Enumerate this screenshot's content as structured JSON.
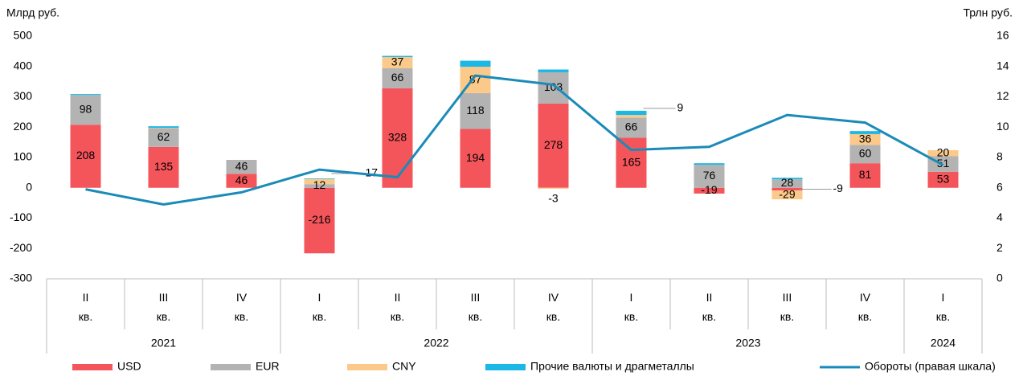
{
  "chart_data": {
    "type": "bar",
    "ylabel": "Млрд руб.",
    "y2label": "Трлн руб.",
    "ylim": [
      -300,
      500
    ],
    "yticks": [
      -300,
      -200,
      -100,
      0,
      100,
      200,
      300,
      400,
      500
    ],
    "y2lim": [
      0,
      16
    ],
    "y2ticks": [
      0,
      2,
      4,
      6,
      8,
      10,
      12,
      14,
      16
    ],
    "year_groups": [
      {
        "label": "2021",
        "quarters": [
          "II кв.",
          "III кв.",
          "IV кв."
        ]
      },
      {
        "label": "2022",
        "quarters": [
          "I кв.",
          "II кв.",
          "III кв.",
          "IV кв."
        ]
      },
      {
        "label": "2023",
        "quarters": [
          "I кв.",
          "II кв.",
          "III кв.",
          "IV кв."
        ]
      },
      {
        "label": "2024",
        "quarters": [
          "I кв."
        ]
      }
    ],
    "series": [
      {
        "name": "USD",
        "color": "#f4555a",
        "values": [
          208,
          135,
          46,
          -216,
          328,
          194,
          278,
          165,
          -19,
          -9,
          81,
          53
        ],
        "value_labels": [
          "208",
          "135",
          "46",
          "-216",
          "328",
          "194",
          "278",
          "165",
          "-19",
          "-9",
          "81",
          "53"
        ]
      },
      {
        "name": "EUR",
        "color": "#b3b3b3",
        "values": [
          98,
          62,
          46,
          12,
          66,
          118,
          103,
          66,
          76,
          28,
          60,
          51
        ],
        "value_labels": [
          "98",
          "62",
          "46",
          "12",
          "66",
          "118",
          "103",
          "66",
          "76",
          "28",
          "60",
          "51"
        ]
      },
      {
        "name": "CNY",
        "color": "#fbc98a",
        "values": [
          0,
          1,
          0,
          17,
          37,
          87,
          -3,
          9,
          0,
          -29,
          36,
          20
        ],
        "value_labels": [
          null,
          null,
          null,
          "17",
          "37",
          "87",
          "-3",
          "9",
          null,
          "-29",
          "36",
          "20"
        ]
      },
      {
        "name": "Прочие валюты и драгметаллы",
        "color": "#1bb8e6",
        "values": [
          3,
          5,
          0,
          2,
          4,
          20,
          9,
          14,
          5,
          5,
          10,
          0
        ]
      },
      {
        "name": "Обороты (правая шкала)",
        "type": "line",
        "axis": "y2",
        "color": "#1a8bb8",
        "values": [
          5.9,
          4.9,
          5.7,
          7.2,
          6.7,
          13.4,
          12.8,
          8.5,
          8.7,
          10.8,
          10.3,
          7.5
        ]
      }
    ]
  }
}
